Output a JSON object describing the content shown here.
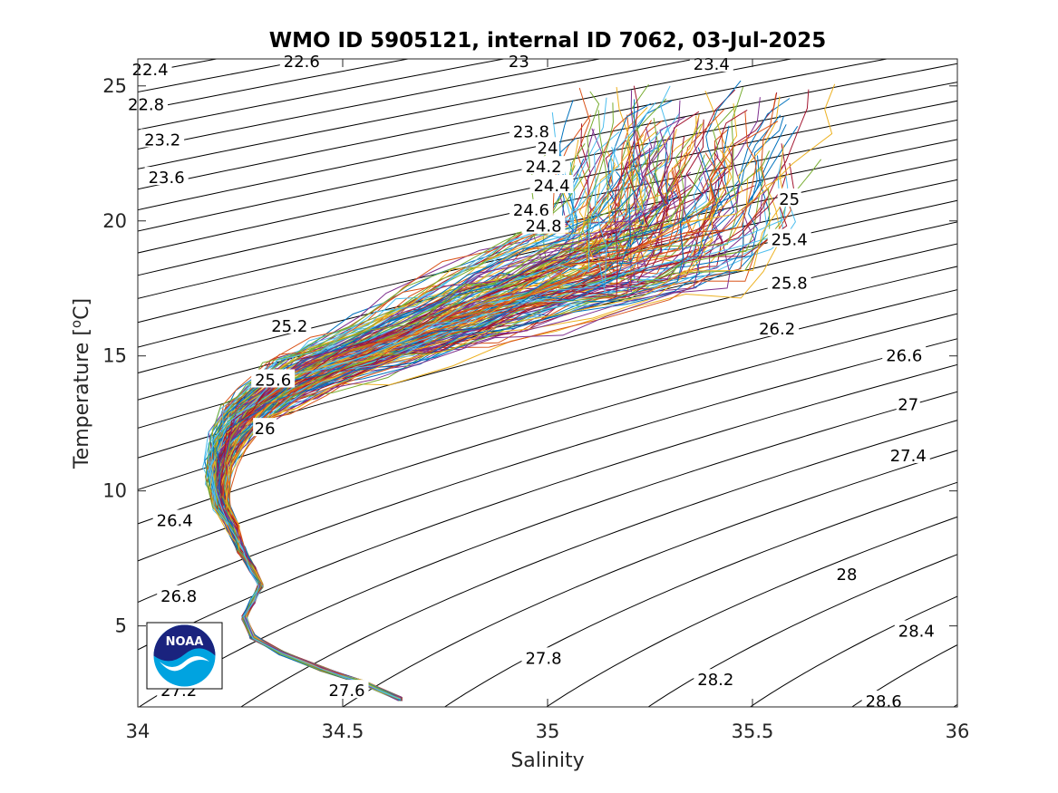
{
  "chart_data": {
    "type": "line",
    "title": "WMO ID 5905121, internal ID 7062, 03-Jul-2025",
    "xlabel": "Salinity",
    "ylabel_parts": [
      "Temperature [",
      "o",
      "C]"
    ],
    "xlim": [
      34,
      36
    ],
    "ylim": [
      2,
      26
    ],
    "xticks": [
      "34",
      "34.5",
      "35",
      "35.5",
      "36"
    ],
    "yticks": [
      "5",
      "10",
      "15",
      "20",
      "25"
    ],
    "grid": false,
    "density_contours": {
      "description_levels": [
        22.4,
        22.6,
        22.8,
        23.0,
        23.2,
        23.4,
        23.6,
        23.8,
        24.0,
        24.2,
        24.4,
        24.6,
        24.8,
        25.0,
        25.2,
        25.4,
        25.6,
        25.8,
        26.0,
        26.2,
        26.4,
        26.6,
        26.8,
        27.0,
        27.2,
        27.4,
        27.6,
        27.8,
        28.0,
        28.2,
        28.4,
        28.6
      ],
      "labels": [
        {
          "text": "22.4",
          "s": 34.03,
          "t": 25.6
        },
        {
          "text": "22.6",
          "s": 34.4,
          "t": 25.9
        },
        {
          "text": "23",
          "s": 34.93,
          "t": 25.9
        },
        {
          "text": "23.4",
          "s": 35.4,
          "t": 25.8
        },
        {
          "text": "22.8",
          "s": 34.02,
          "t": 24.3
        },
        {
          "text": "23.2",
          "s": 34.06,
          "t": 23.0
        },
        {
          "text": "23.6",
          "s": 34.07,
          "t": 21.6
        },
        {
          "text": "23.8",
          "s": 34.96,
          "t": 23.3
        },
        {
          "text": "24",
          "s": 35.0,
          "t": 22.7
        },
        {
          "text": "24.2",
          "s": 34.99,
          "t": 22.0
        },
        {
          "text": "24.4",
          "s": 35.01,
          "t": 21.3
        },
        {
          "text": "24.6",
          "s": 34.96,
          "t": 20.4
        },
        {
          "text": "24.8",
          "s": 34.99,
          "t": 19.8
        },
        {
          "text": "25",
          "s": 35.59,
          "t": 20.8
        },
        {
          "text": "25.4",
          "s": 35.59,
          "t": 19.3
        },
        {
          "text": "25.8",
          "s": 35.59,
          "t": 17.7
        },
        {
          "text": "25.2",
          "s": 34.37,
          "t": 16.1
        },
        {
          "text": "26.2",
          "s": 35.56,
          "t": 16.0
        },
        {
          "text": "25.6",
          "s": 34.33,
          "t": 14.1
        },
        {
          "text": "26.6",
          "s": 35.87,
          "t": 15.0
        },
        {
          "text": "26",
          "s": 34.31,
          "t": 12.3
        },
        {
          "text": "27",
          "s": 35.88,
          "t": 13.2
        },
        {
          "text": "27.4",
          "s": 35.88,
          "t": 11.3
        },
        {
          "text": "26.4",
          "s": 34.09,
          "t": 8.9
        },
        {
          "text": "28",
          "s": 35.73,
          "t": 6.9
        },
        {
          "text": "26.8",
          "s": 34.1,
          "t": 6.1
        },
        {
          "text": "28.4",
          "s": 35.9,
          "t": 4.8
        },
        {
          "text": "27.8",
          "s": 34.99,
          "t": 3.8
        },
        {
          "text": "28.2",
          "s": 35.41,
          "t": 3.0
        },
        {
          "text": "27.6",
          "s": 34.51,
          "t": 2.6
        },
        {
          "text": "27.2",
          "s": 34.1,
          "t": 2.6
        },
        {
          "text": "28.6",
          "s": 35.82,
          "t": 2.2
        }
      ]
    },
    "profiles_summary": {
      "count_approx": 160,
      "mean_curve": [
        [
          34.64,
          2.3
        ],
        [
          34.55,
          2.9
        ],
        [
          34.45,
          3.4
        ],
        [
          34.35,
          4.0
        ],
        [
          34.28,
          4.6
        ],
        [
          34.26,
          5.3
        ],
        [
          34.28,
          5.9
        ],
        [
          34.3,
          6.5
        ],
        [
          34.28,
          7.1
        ],
        [
          34.25,
          7.8
        ],
        [
          34.23,
          8.6
        ],
        [
          34.2,
          9.4
        ],
        [
          34.19,
          10.2
        ],
        [
          34.19,
          11.0
        ],
        [
          34.21,
          11.8
        ],
        [
          34.24,
          12.6
        ],
        [
          34.3,
          13.3
        ],
        [
          34.38,
          14.0
        ],
        [
          34.48,
          14.6
        ],
        [
          34.6,
          15.3
        ],
        [
          34.72,
          16.0
        ],
        [
          34.84,
          16.7
        ],
        [
          34.96,
          17.3
        ],
        [
          35.08,
          17.9
        ],
        [
          35.18,
          18.3
        ]
      ]
    }
  },
  "logo": {
    "text": "NOAA",
    "bg": "#ffffff",
    "navy": "#1a237e",
    "blue": "#00a3e0"
  },
  "colors": {
    "series": [
      "#0072BD",
      "#D95319",
      "#EDB120",
      "#7E2F8E",
      "#77AC30",
      "#4DBEEE",
      "#A2142F"
    ],
    "contour": "#000000",
    "axis": "#262626"
  }
}
